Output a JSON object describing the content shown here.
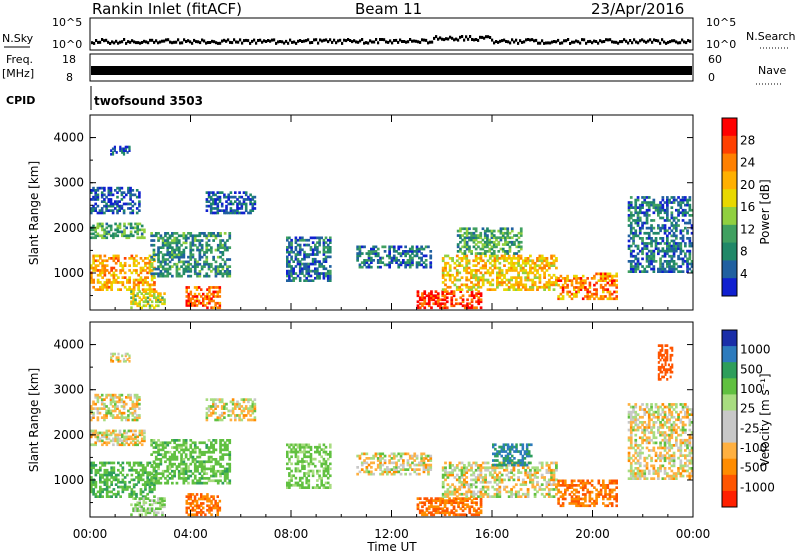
{
  "header": {
    "station": "Rankin Inlet (fitACF)",
    "beam": "Beam 11",
    "date": "23/Apr/2016"
  },
  "strips": {
    "nsky_label": "N.Sky",
    "nsearch_label": "N.Search",
    "freq_label_1": "Freq.",
    "freq_label_2": "[MHz]",
    "nave_label": "Nave",
    "cpid_label": "CPID",
    "cpid_value": "twofsound 3503",
    "noise_left_ticks": [
      "10^5",
      "10^0"
    ],
    "noise_right_ticks": [
      "10^5",
      "10^0"
    ],
    "freq_ticks": [
      "18",
      "8"
    ],
    "nave_ticks": [
      "60",
      "0"
    ]
  },
  "colorbars": {
    "power": {
      "label": "Power [dB]",
      "ticks": [
        "28",
        "24",
        "20",
        "16",
        "12",
        "8",
        "4"
      ],
      "colors": [
        "#ff0000",
        "#ff4000",
        "#ff8000",
        "#ffb000",
        "#e8d800",
        "#90d040",
        "#40a060",
        "#208868",
        "#2060a0",
        "#1020d0"
      ]
    },
    "velocity": {
      "label": "Velocity [m s⁻¹]",
      "ticks": [
        "1000",
        "500",
        "100",
        "25",
        "-25",
        "-100",
        "-500",
        "-1000"
      ],
      "colors": [
        "#1a2ea8",
        "#2d7bbd",
        "#2e9e5b",
        "#60c040",
        "#a8dc80",
        "#c8c8c8",
        "#c8c8c8",
        "#ffb040",
        "#ff8c00",
        "#ff5500",
        "#ff2000"
      ]
    }
  },
  "chart_data": [
    {
      "type": "heatmap",
      "title": "",
      "xlabel": "",
      "ylabel": "Slant Range [km]",
      "xlim": [
        "00:00",
        "00:00"
      ],
      "ylim": [
        180,
        4500
      ],
      "x_ticks": [
        "00:00",
        "04:00",
        "08:00",
        "12:00",
        "16:00",
        "20:00",
        "00:00"
      ],
      "y_ticks": [
        1000,
        2000,
        3000,
        4000
      ],
      "colorbar": "Power [dB]",
      "regions": [
        {
          "t": [
            0.0,
            2.6
          ],
          "range": [
            600,
            1400
          ],
          "value_db": 22
        },
        {
          "t": [
            0.0,
            2.2
          ],
          "range": [
            1750,
            2100
          ],
          "value_db": 12
        },
        {
          "t": [
            0.0,
            2.0
          ],
          "range": [
            2300,
            2900
          ],
          "value_db": 6
        },
        {
          "t": [
            0.8,
            1.6
          ],
          "range": [
            3600,
            3800
          ],
          "value_db": 6
        },
        {
          "t": [
            1.6,
            3.0
          ],
          "range": [
            200,
            600
          ],
          "value_db": 18
        },
        {
          "t": [
            3.8,
            5.2
          ],
          "range": [
            200,
            700
          ],
          "value_db": 26
        },
        {
          "t": [
            2.4,
            5.6
          ],
          "range": [
            900,
            1900
          ],
          "value_db": 10
        },
        {
          "t": [
            4.6,
            6.6
          ],
          "range": [
            2300,
            2800
          ],
          "value_db": 6
        },
        {
          "t": [
            7.8,
            9.6
          ],
          "range": [
            800,
            1800
          ],
          "value_db": 8
        },
        {
          "t": [
            10.6,
            13.6
          ],
          "range": [
            1100,
            1600
          ],
          "value_db": 8
        },
        {
          "t": [
            13.0,
            15.6
          ],
          "range": [
            200,
            600
          ],
          "value_db": 28
        },
        {
          "t": [
            14.0,
            18.6
          ],
          "range": [
            600,
            1400
          ],
          "value_db": 20
        },
        {
          "t": [
            14.6,
            17.2
          ],
          "range": [
            1400,
            2000
          ],
          "value_db": 12
        },
        {
          "t": [
            18.6,
            21.0
          ],
          "range": [
            400,
            1000
          ],
          "value_db": 24
        },
        {
          "t": [
            21.4,
            24.0
          ],
          "range": [
            1000,
            2700
          ],
          "value_db": 8
        }
      ]
    },
    {
      "type": "heatmap",
      "title": "",
      "xlabel": "Time UT",
      "ylabel": "Slant Range [km]",
      "xlim": [
        "00:00",
        "00:00"
      ],
      "ylim": [
        180,
        4500
      ],
      "x_ticks": [
        "00:00",
        "04:00",
        "08:00",
        "12:00",
        "16:00",
        "20:00",
        "00:00"
      ],
      "y_ticks": [
        1000,
        2000,
        3000,
        4000
      ],
      "colorbar": "Velocity [m s⁻¹]",
      "regions": [
        {
          "t": [
            0.0,
            2.6
          ],
          "range": [
            600,
            1400
          ],
          "value_ms": 250
        },
        {
          "t": [
            0.0,
            2.2
          ],
          "range": [
            1750,
            2100
          ],
          "value_ms": 0
        },
        {
          "t": [
            0.0,
            2.0
          ],
          "range": [
            2300,
            2900
          ],
          "value_ms": 0
        },
        {
          "t": [
            0.8,
            1.6
          ],
          "range": [
            3600,
            3800
          ],
          "value_ms": 0
        },
        {
          "t": [
            1.6,
            3.0
          ],
          "range": [
            200,
            600
          ],
          "value_ms": 100
        },
        {
          "t": [
            3.8,
            5.2
          ],
          "range": [
            200,
            700
          ],
          "value_ms": -300
        },
        {
          "t": [
            2.4,
            5.6
          ],
          "range": [
            900,
            1900
          ],
          "value_ms": 200
        },
        {
          "t": [
            4.6,
            6.6
          ],
          "range": [
            2300,
            2800
          ],
          "value_ms": 0
        },
        {
          "t": [
            7.8,
            9.6
          ],
          "range": [
            800,
            1800
          ],
          "value_ms": 150
        },
        {
          "t": [
            10.6,
            13.6
          ],
          "range": [
            1100,
            1600
          ],
          "value_ms": 0
        },
        {
          "t": [
            13.0,
            15.6
          ],
          "range": [
            200,
            600
          ],
          "value_ms": -300
        },
        {
          "t": [
            14.0,
            18.6
          ],
          "range": [
            600,
            1400
          ],
          "value_ms": 0
        },
        {
          "t": [
            16.0,
            17.6
          ],
          "range": [
            1300,
            1800
          ],
          "value_ms": 700
        },
        {
          "t": [
            18.6,
            21.0
          ],
          "range": [
            400,
            1000
          ],
          "value_ms": -300
        },
        {
          "t": [
            21.4,
            24.0
          ],
          "range": [
            1000,
            2700
          ],
          "value_ms": 0
        },
        {
          "t": [
            22.6,
            23.2
          ],
          "range": [
            3200,
            4000
          ],
          "value_ms": -500
        }
      ]
    }
  ]
}
